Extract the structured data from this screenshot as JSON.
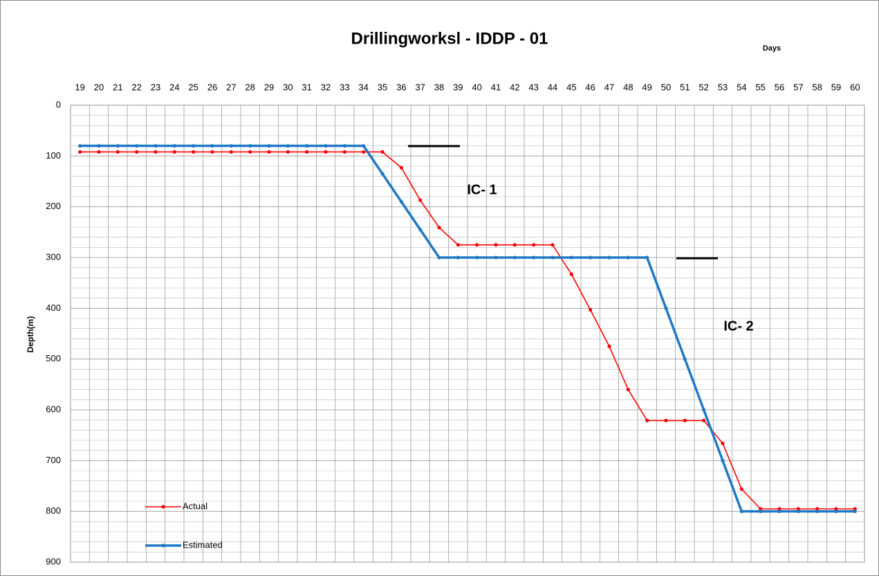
{
  "chart_data": {
    "type": "line",
    "title": "Drillingworksl - IDDP - 01",
    "x_label": "Days",
    "y_label": "Depth(m)",
    "categories": [
      "19",
      "20",
      "21",
      "22",
      "23",
      "24",
      "25",
      "26",
      "27",
      "28",
      "29",
      "30",
      "31",
      "32",
      "33",
      "34",
      "35",
      "36",
      "37",
      "38",
      "39",
      "40",
      "41",
      "42",
      "43",
      "44",
      "45",
      "46",
      "47",
      "48",
      "49",
      "50",
      "51",
      "52",
      "53",
      "54",
      "55",
      "56",
      "57",
      "58",
      "59",
      "60"
    ],
    "series": [
      {
        "name": "Actual",
        "color": "#ff0000",
        "values": [
          92,
          92,
          92,
          92,
          92,
          92,
          92,
          92,
          92,
          92,
          92,
          92,
          92,
          92,
          92,
          92,
          92,
          123,
          187,
          241,
          275,
          275,
          275,
          275,
          275,
          275,
          333,
          403,
          475,
          560,
          621,
          621,
          621,
          621,
          666,
          756,
          795,
          795,
          795,
          795,
          795,
          795
        ]
      },
      {
        "name": "Estimated",
        "color": "#1f78c4",
        "values": [
          80,
          80,
          80,
          80,
          80,
          80,
          80,
          80,
          80,
          80,
          80,
          80,
          80,
          80,
          80,
          80,
          135,
          190,
          245,
          300,
          300,
          300,
          300,
          300,
          300,
          300,
          300,
          300,
          300,
          300,
          300,
          400,
          500,
          600,
          700,
          800,
          800,
          800,
          800,
          800,
          800,
          800
        ]
      }
    ],
    "ylim": [
      0,
      900
    ],
    "y_inverted": true,
    "yticks": [
      0,
      100,
      200,
      300,
      400,
      500,
      600,
      700,
      800,
      900
    ],
    "grid": true,
    "minor_divisions": 5,
    "legend": "lower left",
    "annotations": [
      {
        "text": "IC- 1"
      },
      {
        "text": "IC- 2"
      }
    ]
  }
}
